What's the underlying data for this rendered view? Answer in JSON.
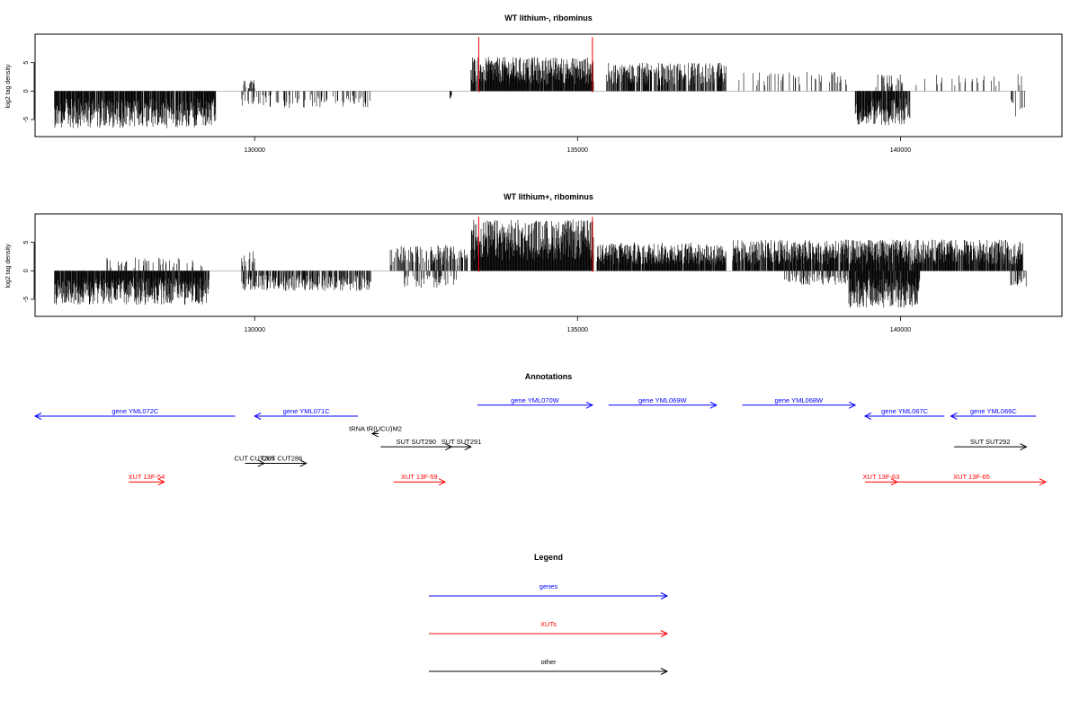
{
  "chart_data": [
    {
      "type": "bar",
      "title": "WT lithium-, ribominus",
      "ylabel": "log2 tag density",
      "xlim": [
        126600,
        142500
      ],
      "ylim": [
        -8,
        10
      ],
      "xticks": [
        130000,
        135000,
        140000
      ],
      "yticks": [
        -5,
        0,
        5
      ],
      "markers": [
        133470,
        135230
      ],
      "segments": [
        {
          "start": 126900,
          "end": 129400,
          "amp": 6.5,
          "sign": -1,
          "density": 0.9
        },
        {
          "start": 129800,
          "end": 131800,
          "amp": 3.0,
          "sign": -1,
          "density": 0.25
        },
        {
          "start": 129800,
          "end": 130000,
          "amp": 2.0,
          "sign": 1,
          "density": 0.3
        },
        {
          "start": 133000,
          "end": 133050,
          "amp": 2.0,
          "sign": -1,
          "density": 0.5
        },
        {
          "start": 133350,
          "end": 135250,
          "amp": 6.0,
          "sign": 1,
          "density": 0.95
        },
        {
          "start": 135450,
          "end": 137300,
          "amp": 5.0,
          "sign": 1,
          "density": 0.7
        },
        {
          "start": 137500,
          "end": 139200,
          "amp": 3.5,
          "sign": 1,
          "density": 0.15
        },
        {
          "start": 139300,
          "end": 140150,
          "amp": 6.0,
          "sign": -1,
          "density": 0.9
        },
        {
          "start": 139600,
          "end": 140100,
          "amp": 3.0,
          "sign": 1,
          "density": 0.2
        },
        {
          "start": 140200,
          "end": 141900,
          "amp": 3.0,
          "sign": 1,
          "density": 0.1
        },
        {
          "start": 141700,
          "end": 141950,
          "amp": 4.5,
          "sign": -1,
          "density": 0.2
        }
      ]
    },
    {
      "type": "bar",
      "title": "WT lithium+, ribominus",
      "ylabel": "log2 tag density",
      "xlim": [
        126600,
        142500
      ],
      "ylim": [
        -8,
        10
      ],
      "xticks": [
        130000,
        135000,
        140000
      ],
      "yticks": [
        -5,
        0,
        5
      ],
      "markers": [
        133470,
        135230
      ],
      "segments": [
        {
          "start": 126900,
          "end": 129300,
          "amp": 6.0,
          "sign": -1,
          "density": 0.95
        },
        {
          "start": 127700,
          "end": 129200,
          "amp": 2.5,
          "sign": 1,
          "density": 0.15
        },
        {
          "start": 129800,
          "end": 131800,
          "amp": 3.5,
          "sign": -1,
          "density": 0.6
        },
        {
          "start": 129800,
          "end": 130000,
          "amp": 3.5,
          "sign": 1,
          "density": 0.4
        },
        {
          "start": 132100,
          "end": 133300,
          "amp": 4.5,
          "sign": 1,
          "density": 0.5
        },
        {
          "start": 132300,
          "end": 133200,
          "amp": 3.0,
          "sign": -1,
          "density": 0.25
        },
        {
          "start": 133350,
          "end": 135250,
          "amp": 9.0,
          "sign": 1,
          "density": 1.0
        },
        {
          "start": 135300,
          "end": 137300,
          "amp": 5.0,
          "sign": 1,
          "density": 0.95
        },
        {
          "start": 137400,
          "end": 141900,
          "amp": 5.5,
          "sign": 1,
          "density": 0.9
        },
        {
          "start": 139200,
          "end": 140300,
          "amp": 6.5,
          "sign": -1,
          "density": 0.95
        },
        {
          "start": 138200,
          "end": 139200,
          "amp": 2.5,
          "sign": -1,
          "density": 0.4
        },
        {
          "start": 141700,
          "end": 141950,
          "amp": 3.0,
          "sign": -1,
          "density": 0.4
        }
      ]
    }
  ],
  "annotations": {
    "title": "Annotations",
    "features": [
      {
        "label": "gene YML072C",
        "start": 126600,
        "end": 129700,
        "strand": "-",
        "color": "#0000ff",
        "row": 0
      },
      {
        "label": "gene YML071C",
        "start": 130000,
        "end": 131600,
        "strand": "-",
        "color": "#0000ff",
        "row": 0
      },
      {
        "label": "gene YML070W",
        "start": 133450,
        "end": 135230,
        "strand": "+",
        "color": "#0000ff",
        "row": -1
      },
      {
        "label": "gene YML069W",
        "start": 135480,
        "end": 137150,
        "strand": "+",
        "color": "#0000ff",
        "row": -1
      },
      {
        "label": "gene YML068W",
        "start": 137550,
        "end": 139300,
        "strand": "+",
        "color": "#0000ff",
        "row": -1
      },
      {
        "label": "gene YML067C",
        "start": 139450,
        "end": 140680,
        "strand": "-",
        "color": "#0000ff",
        "row": 0
      },
      {
        "label": "gene YML066C",
        "start": 140780,
        "end": 142100,
        "strand": "-",
        "color": "#0000ff",
        "row": 0
      },
      {
        "label": "tRNA tR(UCU)M2",
        "start": 131820,
        "end": 131920,
        "strand": "-",
        "color": "#000000",
        "row": 1.6
      },
      {
        "label": "SUT SUT290",
        "start": 131950,
        "end": 133050,
        "strand": "+",
        "color": "#000000",
        "row": 2.8
      },
      {
        "label": "SUT SUT291",
        "start": 133050,
        "end": 133350,
        "strand": "+",
        "color": "#000000",
        "row": 2.8
      },
      {
        "label": "SUT SUT292",
        "start": 140830,
        "end": 141950,
        "strand": "+",
        "color": "#000000",
        "row": 2.8
      },
      {
        "label": "CUT CUT285",
        "start": 129850,
        "end": 130150,
        "strand": "+",
        "color": "#000000",
        "row": 4.3
      },
      {
        "label": "CUT CUT286",
        "start": 130050,
        "end": 130800,
        "strand": "+",
        "color": "#000000",
        "row": 4.3
      },
      {
        "label": "XUT 13F-54",
        "start": 128050,
        "end": 128600,
        "strand": "+",
        "color": "#ff0000",
        "row": 6.0
      },
      {
        "label": "XUT 13F-59",
        "start": 132150,
        "end": 132950,
        "strand": "+",
        "color": "#ff0000",
        "row": 6.0
      },
      {
        "label": "XUT 13F-63",
        "start": 139450,
        "end": 139950,
        "strand": "+",
        "color": "#ff0000",
        "row": 6.0
      },
      {
        "label": "XUT 13F-65",
        "start": 139950,
        "end": 142250,
        "strand": "+",
        "color": "#ff0000",
        "row": 6.0
      }
    ]
  },
  "legend": {
    "title": "Legend",
    "items": [
      {
        "label": "genes",
        "color": "#0000ff"
      },
      {
        "label": "XUTs",
        "color": "#ff0000"
      },
      {
        "label": "other",
        "color": "#000000"
      }
    ]
  }
}
